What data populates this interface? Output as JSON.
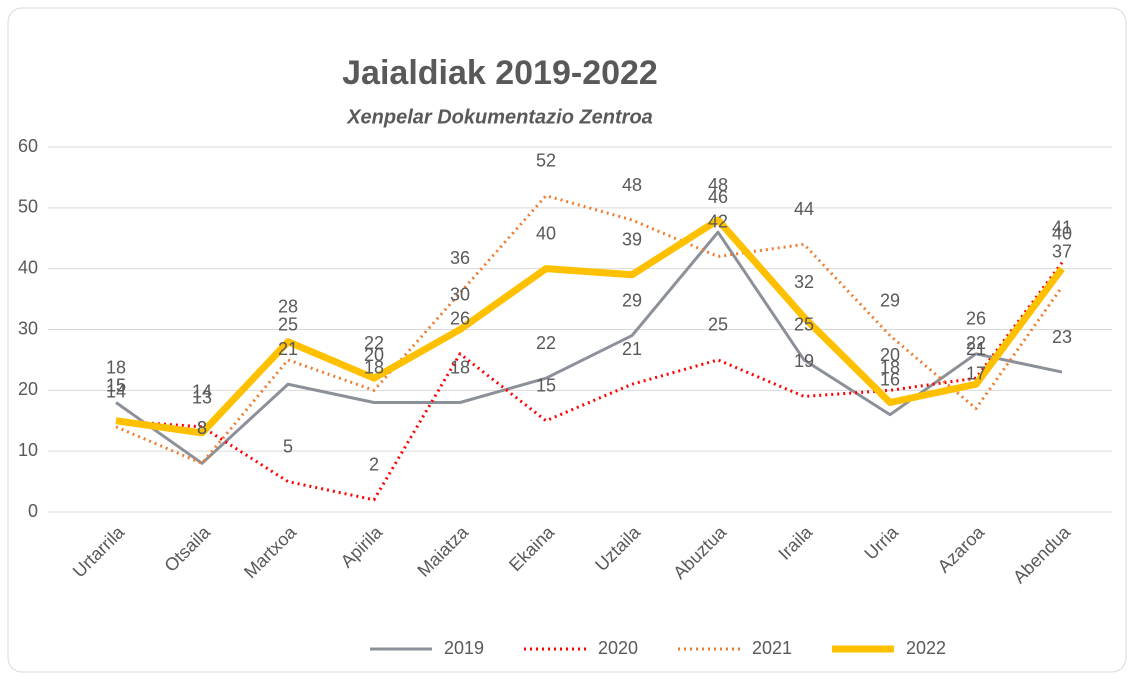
{
  "chart_data": {
    "type": "line",
    "title": "Jaialdiak 2019-2022",
    "subtitle": "Xenpelar Dokumentazio Zentroa",
    "categories": [
      "Urtarrila",
      "Otsaila",
      "Martxoa",
      "Apirila",
      "Maiatza",
      "Ekaina",
      "Uztaila",
      "Abuztua",
      "Iraila",
      "Urria",
      "Azaroa",
      "Abendua"
    ],
    "series": [
      {
        "name": "2019",
        "color": "#8c9199",
        "style": "solid",
        "values": [
          18,
          8,
          21,
          18,
          18,
          22,
          29,
          46,
          25,
          16,
          26,
          23
        ]
      },
      {
        "name": "2020",
        "color": "#ff0000",
        "style": "dotted",
        "values": [
          15,
          14,
          5,
          2,
          26,
          15,
          21,
          25,
          19,
          20,
          22,
          41
        ]
      },
      {
        "name": "2021",
        "color": "#ed7d31",
        "style": "dotted",
        "values": [
          14,
          8,
          25,
          20,
          36,
          52,
          48,
          42,
          44,
          29,
          17,
          37
        ]
      },
      {
        "name": "2022",
        "color": "#ffc000",
        "style": "solid",
        "values": [
          15,
          13,
          28,
          22,
          30,
          40,
          39,
          48,
          32,
          18,
          21,
          40
        ]
      }
    ],
    "ylim": [
      0,
      60
    ],
    "yticks": [
      0,
      10,
      20,
      30,
      40,
      50,
      60
    ],
    "grid": true,
    "data_labels": true,
    "legend": "bottom"
  }
}
